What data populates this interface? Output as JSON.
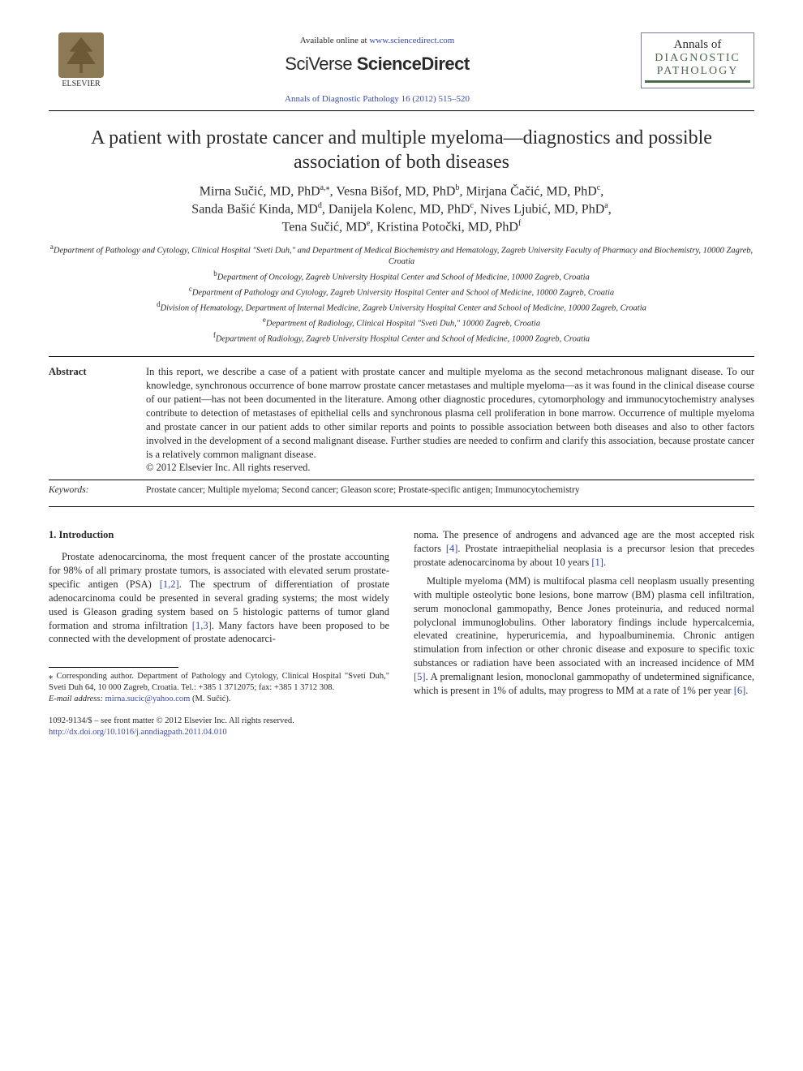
{
  "header": {
    "publisher": "ELSEVIER",
    "available_prefix": "Available online at ",
    "available_url": "www.sciencedirect.com",
    "platform_1": "SciVerse ",
    "platform_2": "ScienceDirect",
    "journal_ref": "Annals of Diagnostic Pathology 16 (2012) 515–520",
    "journal_box_1": "Annals of",
    "journal_box_2": "DIAGNOSTIC",
    "journal_box_3": "PATHOLOGY"
  },
  "title": "A patient with prostate cancer and multiple myeloma—diagnostics and possible association of both diseases",
  "authors": {
    "a1_name": "Mirna Sučić, MD, PhD",
    "a1_sup": "a,⁎",
    "a2_name": "Vesna Bišof, MD, PhD",
    "a2_sup": "b",
    "a3_name": "Mirjana Čačić, MD, PhD",
    "a3_sup": "c",
    "a4_name": "Sanda Bašić Kinda, MD",
    "a4_sup": "d",
    "a5_name": "Danijela Kolenc, MD, PhD",
    "a5_sup": "c",
    "a6_name": "Nives Ljubić, MD, PhD",
    "a6_sup": "a",
    "a7_name": "Tena Sučić, MD",
    "a7_sup": "e",
    "a8_name": "Kristina Potočki, MD, PhD",
    "a8_sup": "f"
  },
  "affiliations": {
    "a_sup": "a",
    "a": "Department of Pathology and Cytology, Clinical Hospital \"Sveti Duh,\" and Department of Medical Biochemistry and Hematology, Zagreb University Faculty of Pharmacy and Biochemistry, 10000 Zagreb, Croatia",
    "b_sup": "b",
    "b": "Department of Oncology, Zagreb University Hospital Center and School of Medicine, 10000 Zagreb, Croatia",
    "c_sup": "c",
    "c": "Department of Pathology and Cytology, Zagreb University Hospital Center and School of Medicine, 10000 Zagreb, Croatia",
    "d_sup": "d",
    "d": "Division of Hematology, Department of Internal Medicine, Zagreb University Hospital Center and School of Medicine, 10000 Zagreb, Croatia",
    "e_sup": "e",
    "e": "Department of Radiology, Clinical Hospital \"Sveti Duh,\" 10000 Zagreb, Croatia",
    "f_sup": "f",
    "f": "Department of Radiology, Zagreb University Hospital Center and School of Medicine, 10000 Zagreb, Croatia"
  },
  "abstract": {
    "label": "Abstract",
    "text": "In this report, we describe a case of a patient with prostate cancer and multiple myeloma as the second metachronous malignant disease. To our knowledge, synchronous occurrence of bone marrow prostate cancer metastases and multiple myeloma—as it was found in the clinical disease course of our patient—has not been documented in the literature. Among other diagnostic procedures, cytomorphology and immunocytochemistry analyses contribute to detection of metastases of epithelial cells and synchronous plasma cell proliferation in bone marrow. Occurrence of multiple myeloma and prostate cancer in our patient adds to other similar reports and points to possible association between both diseases and also to other factors involved in the development of a second malignant disease. Further studies are needed to confirm and clarify this association, because prostate cancer is a relatively common malignant disease.",
    "copyright": "© 2012 Elsevier Inc. All rights reserved."
  },
  "keywords": {
    "label": "Keywords:",
    "text": "Prostate cancer; Multiple myeloma; Second cancer; Gleason score; Prostate-specific antigen; Immunocytochemistry"
  },
  "body": {
    "section_heading": "1. Introduction",
    "col1_p1a": "Prostate adenocarcinoma, the most frequent cancer of the prostate accounting for 98% of all primary prostate tumors, is associated with elevated serum prostate-specific antigen (PSA) ",
    "ref12": "[1,2]",
    "col1_p1b": ". The spectrum of differentiation of prostate adenocarcinoma could be presented in several grading systems; the most widely used is Gleason grading system based on 5 histologic patterns of tumor gland formation and stroma infiltration ",
    "ref13": "[1,3]",
    "col1_p1c": ". Many factors have been proposed to be connected with the development of prostate adenocarci-",
    "col2_p1a": "noma. The presence of androgens and advanced age are the most accepted risk factors ",
    "ref4": "[4]",
    "col2_p1b": ". Prostate intraepithelial neoplasia is a precursor lesion that precedes prostate adenocarcinoma by about 10 years ",
    "ref1": "[1]",
    "col2_p1c": ".",
    "col2_p2a": "Multiple myeloma (MM) is multifocal plasma cell neoplasm usually presenting with multiple osteolytic bone lesions, bone marrow (BM) plasma cell infiltration, serum monoclonal gammopathy, Bence Jones proteinuria, and reduced normal polyclonal immunoglobulins. Other laboratory findings include hypercalcemia, elevated creatinine, hyperuricemia, and hypoalbuminemia. Chronic antigen stimulation from infection or other chronic disease and exposure to specific toxic substances or radiation have been associated with an increased incidence of MM ",
    "ref5": "[5]",
    "col2_p2b": ". A premalignant lesion, monoclonal gammopathy of undetermined significance, which is present in 1% of adults, may progress to MM at a rate of 1% per year ",
    "ref6": "[6]",
    "col2_p2c": "."
  },
  "footnote": {
    "star": "⁎",
    "corr": " Corresponding author. Department of Pathology and Cytology, Clinical Hospital \"Sveti Duh,\" Sveti Duh 64, 10 000 Zagreb, Croatia. Tel.: +385 1 3712075; fax: +385 1 3712 308.",
    "email_label": "E-mail address: ",
    "email": "mirna.sucic@yahoo.com",
    "email_tail": " (M. Sučić)."
  },
  "copyright": {
    "line1": "1092-9134/$ – see front matter © 2012 Elsevier Inc. All rights reserved.",
    "doi": "http://dx.doi.org/10.1016/j.anndiagpath.2011.04.010"
  },
  "colors": {
    "link": "#3a4aa8",
    "text": "#2a2a2a",
    "journal_green": "#4a6a4a"
  }
}
